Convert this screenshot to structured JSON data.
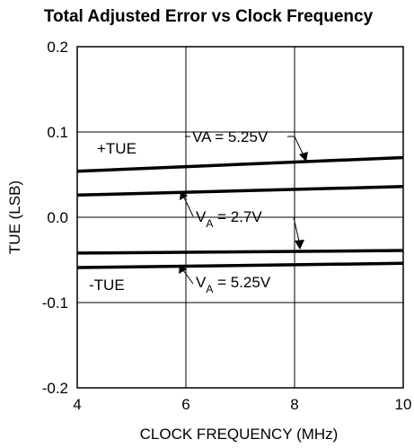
{
  "chart_data": {
    "type": "line",
    "title": "Total Adjusted Error vs Clock Frequency",
    "xlabel": "CLOCK FREQUENCY (MHz)",
    "ylabel": "TUE (LSB)",
    "xlim": [
      4,
      10
    ],
    "ylim": [
      -0.2,
      0.2
    ],
    "xticks": [
      "4",
      "6",
      "8",
      "10"
    ],
    "yticks": [
      "0.2",
      "0.1",
      "0.0",
      "-0.1",
      "-0.2"
    ],
    "grid": true,
    "series": [
      {
        "x": [
          4,
          10
        ],
        "values": [
          0.054,
          0.07
        ]
      },
      {
        "x": [
          4,
          10
        ],
        "values": [
          0.026,
          0.036
        ]
      },
      {
        "x": [
          4,
          10
        ],
        "values": [
          -0.042,
          -0.039
        ]
      },
      {
        "x": [
          4,
          10
        ],
        "values": [
          -0.059,
          -0.054
        ]
      }
    ],
    "annotations": {
      "plus_tue": "+TUE",
      "minus_tue": "-TUE",
      "va_525_top": "VA = 5.25V",
      "va_27_prefix": "V",
      "va_27_sub": "A",
      "va_27_suffix": " = 2.7V",
      "va_525_bottom_prefix": "V",
      "va_525_bottom_sub": "A",
      "va_525_bottom_suffix": " = 5.25V"
    }
  }
}
